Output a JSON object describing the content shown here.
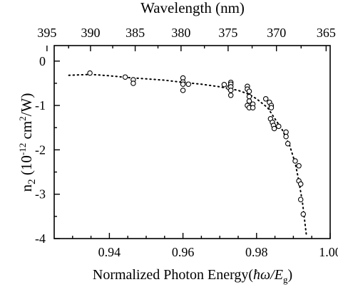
{
  "chart_data": {
    "type": "scatter",
    "top_axis": {
      "label": "Wavelength (nm)",
      "ticks": [
        "395",
        "390",
        "385",
        "380",
        "375",
        "370",
        "365"
      ]
    },
    "xlabel_main": "Normalized Photon Energy(",
    "xlabel_symbol": "ħω/E",
    "xlabel_sub": "g",
    "xlabel_end": ")",
    "ylabel_n": "n",
    "ylabel_n_sub": "2",
    "ylabel_unit_pre": "(10",
    "ylabel_unit_exp": "-12",
    "ylabel_unit_mid": " cm",
    "ylabel_unit_exp2": "2",
    "ylabel_unit_post": "/W)",
    "xlim": [
      0.925,
      1.0
    ],
    "ylim": [
      -4,
      0.35
    ],
    "x_ticks": [
      0.94,
      0.96,
      0.98,
      1.0
    ],
    "x_tick_labels": [
      "0.94",
      "0.96",
      "0.98",
      "1.00"
    ],
    "y_ticks": [
      0,
      -1,
      -2,
      -3,
      -4
    ],
    "y_tick_labels": [
      "0",
      "-1",
      "-2",
      "-3",
      "-4"
    ],
    "grid": false,
    "series": [
      {
        "style": "open-circle",
        "points": [
          [
            0.9347,
            -0.27
          ],
          [
            0.9443,
            -0.36
          ],
          [
            0.9465,
            -0.42
          ],
          [
            0.9465,
            -0.5
          ],
          [
            0.96,
            -0.38
          ],
          [
            0.96,
            -0.47
          ],
          [
            0.96,
            -0.52
          ],
          [
            0.96,
            -0.66
          ],
          [
            0.9615,
            -0.52
          ],
          [
            0.9712,
            -0.53
          ],
          [
            0.9725,
            -0.6
          ],
          [
            0.973,
            -0.48
          ],
          [
            0.973,
            -0.52
          ],
          [
            0.973,
            -0.58
          ],
          [
            0.973,
            -0.66
          ],
          [
            0.973,
            -0.77
          ],
          [
            0.9775,
            -0.57
          ],
          [
            0.9775,
            -0.63
          ],
          [
            0.978,
            -0.68
          ],
          [
            0.978,
            -0.8
          ],
          [
            0.978,
            -0.9
          ],
          [
            0.9775,
            -1.0
          ],
          [
            0.978,
            -1.05
          ],
          [
            0.979,
            -0.97
          ],
          [
            0.979,
            -1.05
          ],
          [
            0.9825,
            -0.85
          ],
          [
            0.9835,
            -0.93
          ],
          [
            0.984,
            -1.0
          ],
          [
            0.984,
            -1.05
          ],
          [
            0.9838,
            -1.3
          ],
          [
            0.9843,
            -1.38
          ],
          [
            0.9846,
            -1.45
          ],
          [
            0.9848,
            -1.52
          ],
          [
            0.986,
            -1.47
          ],
          [
            0.988,
            -1.6
          ],
          [
            0.988,
            -1.7
          ],
          [
            0.9885,
            -1.86
          ],
          [
            0.9905,
            -2.25
          ],
          [
            0.9915,
            -2.36
          ],
          [
            0.9915,
            -2.7
          ],
          [
            0.992,
            -2.77
          ],
          [
            0.992,
            -3.12
          ],
          [
            0.9927,
            -3.45
          ]
        ]
      },
      {
        "style": "dotted-line",
        "points": [
          [
            0.929,
            -0.32
          ],
          [
            0.935,
            -0.3
          ],
          [
            0.94,
            -0.33
          ],
          [
            0.945,
            -0.37
          ],
          [
            0.95,
            -0.4
          ],
          [
            0.955,
            -0.43
          ],
          [
            0.96,
            -0.48
          ],
          [
            0.965,
            -0.52
          ],
          [
            0.97,
            -0.58
          ],
          [
            0.975,
            -0.66
          ],
          [
            0.978,
            -0.75
          ],
          [
            0.98,
            -0.85
          ],
          [
            0.983,
            -1.05
          ],
          [
            0.985,
            -1.3
          ],
          [
            0.987,
            -1.55
          ],
          [
            0.989,
            -1.9
          ],
          [
            0.9905,
            -2.3
          ],
          [
            0.9915,
            -2.7
          ],
          [
            0.9925,
            -3.2
          ],
          [
            0.9935,
            -3.9
          ]
        ]
      }
    ]
  }
}
